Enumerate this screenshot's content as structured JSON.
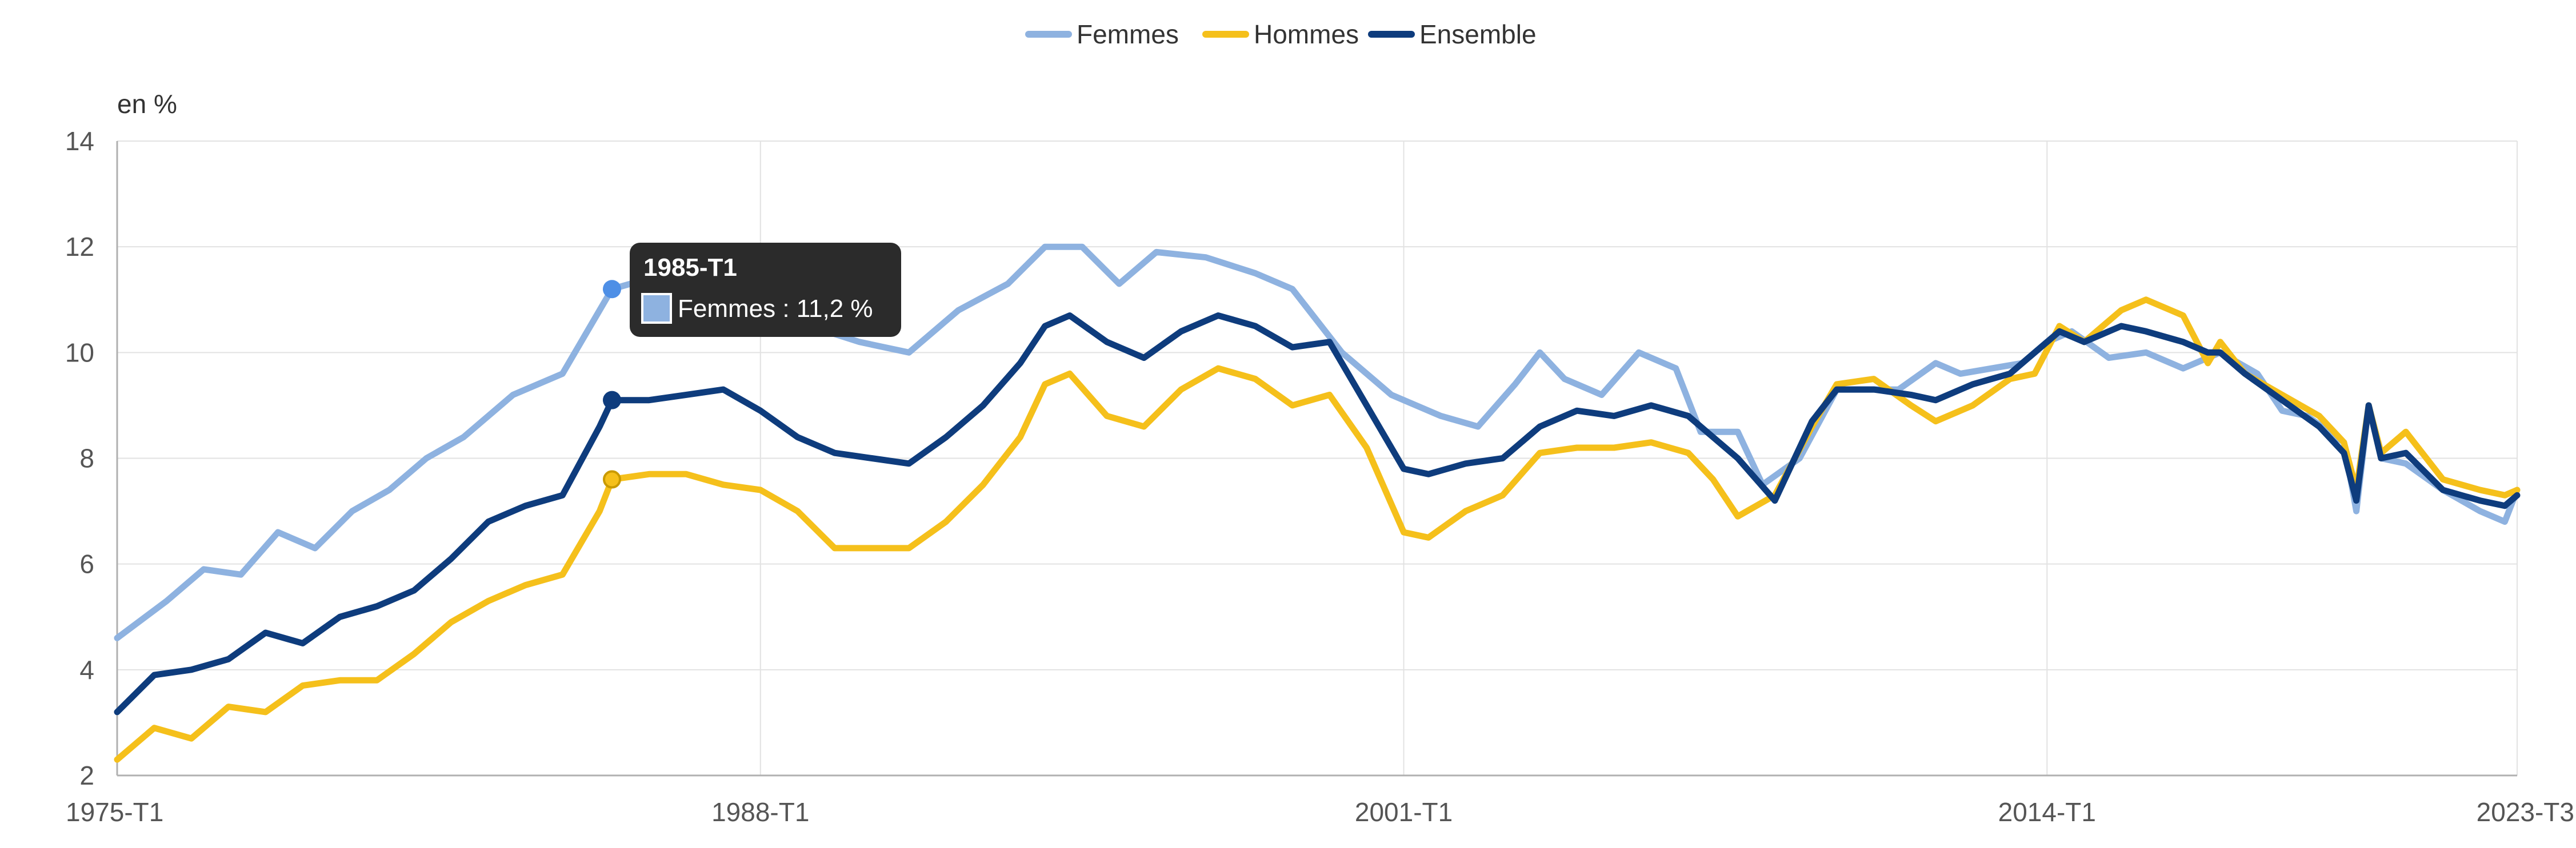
{
  "chart_data": {
    "type": "line",
    "ylabel": "en %",
    "ylim": [
      2,
      14
    ],
    "yticks": [
      2,
      4,
      6,
      8,
      10,
      12,
      14
    ],
    "xticks": [
      "1975-T1",
      "1988-T1",
      "2001-T1",
      "2014-T1",
      "2023-T3"
    ],
    "grid": true,
    "legend_position": "top-center",
    "x_start": "1975-T1",
    "x_end": "2023-T3",
    "series": [
      {
        "name": "Femmes",
        "color": "#8eb2e0",
        "keypoints": [
          [
            "1975-T1",
            4.6
          ],
          [
            "1976-T1",
            5.3
          ],
          [
            "1976-T4",
            5.9
          ],
          [
            "1977-T3",
            5.8
          ],
          [
            "1978-T2",
            6.6
          ],
          [
            "1979-T1",
            6.3
          ],
          [
            "1979-T4",
            7.0
          ],
          [
            "1980-T3",
            7.4
          ],
          [
            "1981-T2",
            8.0
          ],
          [
            "1982-T1",
            8.4
          ],
          [
            "1983-T1",
            9.2
          ],
          [
            "1984-T1",
            9.6
          ],
          [
            "1985-T1",
            11.2
          ],
          [
            "1985-T4",
            11.4
          ],
          [
            "1986-T3",
            11.5
          ],
          [
            "1987-T2",
            11.4
          ],
          [
            "1988-T1",
            11.1
          ],
          [
            "1989-T1",
            10.5
          ],
          [
            "1990-T1",
            10.2
          ],
          [
            "1991-T1",
            10.0
          ],
          [
            "1992-T1",
            10.8
          ],
          [
            "1993-T1",
            11.3
          ],
          [
            "1993-T4",
            12.0
          ],
          [
            "1994-T3",
            12.0
          ],
          [
            "1995-T2",
            11.3
          ],
          [
            "1996-T1",
            11.9
          ],
          [
            "1997-T1",
            11.8
          ],
          [
            "1998-T1",
            11.5
          ],
          [
            "1998-T4",
            11.2
          ],
          [
            "1999-T4",
            10.0
          ],
          [
            "2000-T4",
            9.2
          ],
          [
            "2001-T4",
            8.8
          ],
          [
            "2002-T3",
            8.6
          ],
          [
            "2003-T2",
            9.4
          ],
          [
            "2003-T4",
            10.0
          ],
          [
            "2004-T2",
            9.5
          ],
          [
            "2005-T1",
            9.2
          ],
          [
            "2005-T4",
            10.0
          ],
          [
            "2006-T3",
            9.7
          ],
          [
            "2007-T1",
            8.5
          ],
          [
            "2007-T4",
            8.5
          ],
          [
            "2008-T2",
            7.5
          ],
          [
            "2009-T1",
            8.0
          ],
          [
            "2009-T4",
            9.3
          ],
          [
            "2011-T1",
            9.3
          ],
          [
            "2011-T4",
            9.8
          ],
          [
            "2012-T2",
            9.6
          ],
          [
            "2013-T3",
            9.8
          ],
          [
            "2014-T1",
            10.2
          ],
          [
            "2014-T3",
            10.4
          ],
          [
            "2015-T2",
            9.9
          ],
          [
            "2016-T1",
            10.0
          ],
          [
            "2016-T4",
            9.7
          ],
          [
            "2017-T3",
            10.0
          ],
          [
            "2018-T2",
            9.6
          ],
          [
            "2018-T4",
            8.9
          ],
          [
            "2019-T2",
            8.8
          ],
          [
            "2020-T1",
            8.3
          ],
          [
            "2020-T2",
            7.0
          ],
          [
            "2020-T3",
            9.0
          ],
          [
            "2020-T4",
            8.0
          ],
          [
            "2021-T2",
            7.9
          ],
          [
            "2022-T1",
            7.4
          ],
          [
            "2022-T4",
            7.0
          ],
          [
            "2023-T2",
            6.8
          ],
          [
            "2023-T3",
            7.4
          ]
        ]
      },
      {
        "name": "Hommes",
        "color": "#f5c01b",
        "keypoints": [
          [
            "1975-T1",
            2.3
          ],
          [
            "1975-T4",
            2.9
          ],
          [
            "1976-T3",
            2.7
          ],
          [
            "1977-T2",
            3.3
          ],
          [
            "1978-T1",
            3.2
          ],
          [
            "1978-T4",
            3.7
          ],
          [
            "1979-T3",
            3.8
          ],
          [
            "1980-T2",
            3.8
          ],
          [
            "1981-T1",
            4.3
          ],
          [
            "1981-T4",
            4.9
          ],
          [
            "1982-T3",
            5.3
          ],
          [
            "1983-T2",
            5.6
          ],
          [
            "1984-T1",
            5.8
          ],
          [
            "1984-T4",
            7.0
          ],
          [
            "1985-T1",
            7.6
          ],
          [
            "1985-T4",
            7.7
          ],
          [
            "1986-T3",
            7.7
          ],
          [
            "1987-T2",
            7.5
          ],
          [
            "1988-T1",
            7.4
          ],
          [
            "1988-T4",
            7.0
          ],
          [
            "1989-T3",
            6.3
          ],
          [
            "1990-T2",
            6.3
          ],
          [
            "1991-T1",
            6.3
          ],
          [
            "1991-T4",
            6.8
          ],
          [
            "1992-T3",
            7.5
          ],
          [
            "1993-T2",
            8.4
          ],
          [
            "1993-T4",
            9.4
          ],
          [
            "1994-T2",
            9.6
          ],
          [
            "1995-T1",
            8.8
          ],
          [
            "1995-T4",
            8.6
          ],
          [
            "1996-T3",
            9.3
          ],
          [
            "1997-T2",
            9.7
          ],
          [
            "1998-T1",
            9.5
          ],
          [
            "1998-T4",
            9.0
          ],
          [
            "1999-T3",
            9.2
          ],
          [
            "2000-T2",
            8.2
          ],
          [
            "2001-T1",
            6.6
          ],
          [
            "2001-T3",
            6.5
          ],
          [
            "2002-T2",
            7.0
          ],
          [
            "2003-T1",
            7.3
          ],
          [
            "2003-T4",
            8.1
          ],
          [
            "2004-T3",
            8.2
          ],
          [
            "2005-T2",
            8.2
          ],
          [
            "2006-T1",
            8.3
          ],
          [
            "2006-T4",
            8.1
          ],
          [
            "2007-T2",
            7.6
          ],
          [
            "2007-T4",
            6.9
          ],
          [
            "2008-T3",
            7.3
          ],
          [
            "2009-T2",
            8.6
          ],
          [
            "2009-T4",
            9.4
          ],
          [
            "2010-T3",
            9.5
          ],
          [
            "2011-T2",
            9.0
          ],
          [
            "2011-T4",
            8.7
          ],
          [
            "2012-T3",
            9.0
          ],
          [
            "2013-T2",
            9.5
          ],
          [
            "2013-T4",
            9.6
          ],
          [
            "2014-T2",
            10.5
          ],
          [
            "2014-T4",
            10.2
          ],
          [
            "2015-T3",
            10.8
          ],
          [
            "2016-T1",
            11.0
          ],
          [
            "2016-T4",
            10.7
          ],
          [
            "2017-T2",
            9.8
          ],
          [
            "2017-T3",
            10.2
          ],
          [
            "2018-T1",
            9.6
          ],
          [
            "2018-T4",
            9.2
          ],
          [
            "2019-T3",
            8.8
          ],
          [
            "2020-T1",
            8.3
          ],
          [
            "2020-T2",
            7.4
          ],
          [
            "2020-T3",
            9.0
          ],
          [
            "2020-T4",
            8.1
          ],
          [
            "2021-T2",
            8.5
          ],
          [
            "2022-T1",
            7.6
          ],
          [
            "2022-T4",
            7.4
          ],
          [
            "2023-T2",
            7.3
          ],
          [
            "2023-T3",
            7.4
          ]
        ]
      },
      {
        "name": "Ensemble",
        "color": "#0e3c7d",
        "keypoints": [
          [
            "1975-T1",
            3.2
          ],
          [
            "1975-T4",
            3.9
          ],
          [
            "1976-T3",
            4.0
          ],
          [
            "1977-T2",
            4.2
          ],
          [
            "1978-T1",
            4.7
          ],
          [
            "1978-T4",
            4.5
          ],
          [
            "1979-T3",
            5.0
          ],
          [
            "1980-T2",
            5.2
          ],
          [
            "1981-T1",
            5.5
          ],
          [
            "1981-T4",
            6.1
          ],
          [
            "1982-T3",
            6.8
          ],
          [
            "1983-T2",
            7.1
          ],
          [
            "1984-T1",
            7.3
          ],
          [
            "1984-T4",
            8.6
          ],
          [
            "1985-T1",
            9.1
          ],
          [
            "1985-T4",
            9.1
          ],
          [
            "1986-T3",
            9.2
          ],
          [
            "1987-T2",
            9.3
          ],
          [
            "1988-T1",
            8.9
          ],
          [
            "1988-T4",
            8.4
          ],
          [
            "1989-T3",
            8.1
          ],
          [
            "1990-T2",
            8.0
          ],
          [
            "1991-T1",
            7.9
          ],
          [
            "1991-T4",
            8.4
          ],
          [
            "1992-T3",
            9.0
          ],
          [
            "1993-T2",
            9.8
          ],
          [
            "1993-T4",
            10.5
          ],
          [
            "1994-T2",
            10.7
          ],
          [
            "1995-T1",
            10.2
          ],
          [
            "1995-T4",
            9.9
          ],
          [
            "1996-T3",
            10.4
          ],
          [
            "1997-T2",
            10.7
          ],
          [
            "1998-T1",
            10.5
          ],
          [
            "1998-T4",
            10.1
          ],
          [
            "1999-T3",
            10.2
          ],
          [
            "2000-T2",
            9.0
          ],
          [
            "2001-T1",
            7.8
          ],
          [
            "2001-T3",
            7.7
          ],
          [
            "2002-T2",
            7.9
          ],
          [
            "2003-T1",
            8.0
          ],
          [
            "2003-T4",
            8.6
          ],
          [
            "2004-T3",
            8.9
          ],
          [
            "2005-T2",
            8.8
          ],
          [
            "2006-T1",
            9.0
          ],
          [
            "2006-T4",
            8.8
          ],
          [
            "2007-T2",
            8.4
          ],
          [
            "2007-T4",
            8.0
          ],
          [
            "2008-T3",
            7.2
          ],
          [
            "2009-T2",
            8.7
          ],
          [
            "2009-T4",
            9.3
          ],
          [
            "2010-T3",
            9.3
          ],
          [
            "2011-T2",
            9.2
          ],
          [
            "2011-T4",
            9.1
          ],
          [
            "2012-T3",
            9.4
          ],
          [
            "2013-T2",
            9.6
          ],
          [
            "2013-T4",
            10.0
          ],
          [
            "2014-T2",
            10.4
          ],
          [
            "2014-T4",
            10.2
          ],
          [
            "2015-T3",
            10.5
          ],
          [
            "2016-T1",
            10.4
          ],
          [
            "2016-T4",
            10.2
          ],
          [
            "2017-T2",
            10.0
          ],
          [
            "2017-T3",
            10.0
          ],
          [
            "2018-T1",
            9.6
          ],
          [
            "2018-T4",
            9.1
          ],
          [
            "2019-T3",
            8.6
          ],
          [
            "2020-T1",
            8.1
          ],
          [
            "2020-T2",
            7.2
          ],
          [
            "2020-T3",
            9.0
          ],
          [
            "2020-T4",
            8.0
          ],
          [
            "2021-T2",
            8.1
          ],
          [
            "2022-T1",
            7.4
          ],
          [
            "2022-T4",
            7.2
          ],
          [
            "2023-T2",
            7.1
          ],
          [
            "2023-T3",
            7.3
          ]
        ]
      }
    ],
    "tooltip": {
      "period": "1985-T1",
      "series_name": "Femmes",
      "text": "Femmes : 11,2 %",
      "markers": [
        {
          "series": "Femmes",
          "value": 11.2
        },
        {
          "series": "Ensemble",
          "value": 9.1
        },
        {
          "series": "Hommes",
          "value": 7.6
        }
      ]
    }
  }
}
